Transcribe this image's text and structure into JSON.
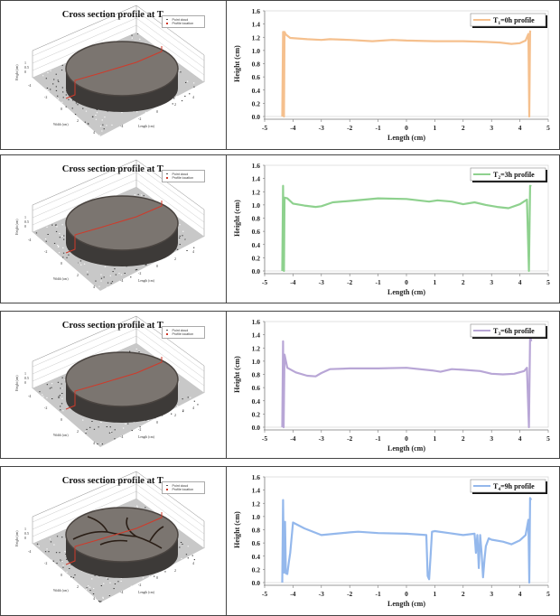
{
  "panels": [
    {
      "title_prefix": "Cross section profile at T",
      "title_sub": "1",
      "legend3d": [
        "Point cloud",
        "Profile location"
      ],
      "axis3d": {
        "height_label": "Height (cm)",
        "width_label": "Width (cm)",
        "length_label": "Length (cm)"
      },
      "profile_label_prefix": "T",
      "profile_label_sub": "1",
      "profile_label_suffix": "=0h profile",
      "color": "#F5C08E",
      "cracks": false
    },
    {
      "title_prefix": "Cross section profile at T",
      "title_sub": "2",
      "legend3d": [
        "Point cloud",
        "Profile location"
      ],
      "axis3d": {
        "height_label": "Height (cm)",
        "width_label": "Width (cm)",
        "length_label": "Length (cm)"
      },
      "profile_label_prefix": "T",
      "profile_label_sub": "2",
      "profile_label_suffix": "=3h profile",
      "color": "#8ED18E",
      "cracks": false
    },
    {
      "title_prefix": "Cross section profile at T",
      "title_sub": "3",
      "legend3d": [
        "Point cloud",
        "Profile location"
      ],
      "axis3d": {
        "height_label": "Height (cm)",
        "width_label": "Width (cm)",
        "length_label": "Length (cm)"
      },
      "profile_label_prefix": "T",
      "profile_label_sub": "3",
      "profile_label_suffix": "=6h profile",
      "color": "#B8A6D6",
      "cracks": false
    },
    {
      "title_prefix": "Cross section profile at T",
      "title_sub": "4",
      "legend3d": [
        "Point cloud",
        "Profile location"
      ],
      "axis3d": {
        "height_label": "Height (cm)",
        "width_label": "Width (cm)",
        "length_label": "Length (cm)"
      },
      "profile_label_prefix": "T",
      "profile_label_sub": "4",
      "profile_label_suffix": "=9h profile",
      "color": "#94B8EC",
      "cracks": true
    }
  ],
  "axes": {
    "xlabel": "Length (cm)",
    "ylabel": "Height (cm)",
    "xticks": [
      "-5",
      "-4",
      "-3",
      "-2",
      "-1",
      "0",
      "1",
      "2",
      "3",
      "4",
      "5"
    ],
    "yticks": [
      "0.0",
      "0.2",
      "0.4",
      "0.6",
      "0.8",
      "1.0",
      "1.2",
      "1.4",
      "1.6"
    ],
    "xlim": [
      -5,
      5
    ],
    "ylim": [
      0,
      1.6
    ]
  },
  "chart_data": [
    {
      "type": "line",
      "title": "T1=0h profile",
      "xlabel": "Length (cm)",
      "ylabel": "Height (cm)",
      "xlim": [
        -5,
        5
      ],
      "ylim": [
        0,
        1.6
      ],
      "legend_position": "upper right",
      "x": [
        -4.38,
        -4.35,
        -4.32,
        -4.3,
        -4.25,
        -4.1,
        -3.5,
        -3.0,
        -2.7,
        -2.0,
        -1.2,
        -0.5,
        0.0,
        1.0,
        2.0,
        2.8,
        3.3,
        3.7,
        4.0,
        4.2,
        4.3,
        4.33,
        4.36,
        4.38
      ],
      "y": [
        0.0,
        1.28,
        0.0,
        1.28,
        1.24,
        1.19,
        1.17,
        1.16,
        1.17,
        1.16,
        1.14,
        1.16,
        1.15,
        1.14,
        1.14,
        1.13,
        1.12,
        1.1,
        1.11,
        1.15,
        1.25,
        0.0,
        1.29,
        1.28
      ]
    },
    {
      "type": "line",
      "title": "T2=3h profile",
      "xlabel": "Length (cm)",
      "ylabel": "Height (cm)",
      "xlim": [
        -5,
        5
      ],
      "ylim": [
        0,
        1.6
      ],
      "legend_position": "upper right",
      "x": [
        -4.38,
        -4.35,
        -4.32,
        -4.3,
        -4.2,
        -4.0,
        -3.6,
        -3.2,
        -3.0,
        -2.6,
        -2.0,
        -1.0,
        0.0,
        0.8,
        1.1,
        1.6,
        2.0,
        2.4,
        2.8,
        3.2,
        3.6,
        4.0,
        4.25,
        4.32,
        4.36,
        4.4
      ],
      "y": [
        0.0,
        1.29,
        0.0,
        1.11,
        1.1,
        1.02,
        0.99,
        0.97,
        0.98,
        1.04,
        1.06,
        1.1,
        1.09,
        1.05,
        1.07,
        1.05,
        1.01,
        1.04,
        1.0,
        0.97,
        0.95,
        1.01,
        1.08,
        0.0,
        1.29,
        1.28
      ]
    },
    {
      "type": "line",
      "title": "T3=6h profile",
      "xlabel": "Length (cm)",
      "ylabel": "Height (cm)",
      "xlim": [
        -5,
        5
      ],
      "ylim": [
        0,
        1.6
      ],
      "legend_position": "upper right",
      "x": [
        -4.38,
        -4.35,
        -4.33,
        -4.3,
        -4.2,
        -3.9,
        -3.5,
        -3.2,
        -3.0,
        -2.7,
        -2.0,
        -1.0,
        0.0,
        0.9,
        1.2,
        1.6,
        2.0,
        2.6,
        3.0,
        3.4,
        3.8,
        4.15,
        4.25,
        4.32,
        4.36,
        4.4
      ],
      "y": [
        0.0,
        1.3,
        0.0,
        1.1,
        0.9,
        0.83,
        0.78,
        0.77,
        0.82,
        0.88,
        0.89,
        0.89,
        0.9,
        0.86,
        0.84,
        0.88,
        0.87,
        0.85,
        0.81,
        0.8,
        0.81,
        0.85,
        0.9,
        0.0,
        1.38,
        1.3
      ]
    },
    {
      "type": "line",
      "title": "T4=9h profile",
      "xlabel": "Length (cm)",
      "ylabel": "Height (cm)",
      "xlim": [
        -5,
        5
      ],
      "ylim": [
        0,
        1.6
      ],
      "legend_position": "upper right",
      "x": [
        -4.38,
        -4.35,
        -4.32,
        -4.28,
        -4.25,
        -4.2,
        -4.15,
        -4.1,
        -4.0,
        -3.6,
        -3.0,
        -2.0,
        -1.7,
        -1.0,
        0.0,
        0.7,
        0.75,
        0.8,
        0.85,
        0.9,
        1.0,
        1.5,
        2.0,
        2.4,
        2.45,
        2.5,
        2.55,
        2.6,
        2.65,
        2.7,
        2.75,
        2.8,
        2.9,
        3.0,
        3.4,
        3.7,
        4.0,
        4.2,
        4.3,
        4.33,
        4.36,
        4.4
      ],
      "y": [
        0.0,
        1.25,
        0.15,
        0.92,
        0.14,
        0.13,
        0.3,
        0.45,
        0.91,
        0.82,
        0.72,
        0.76,
        0.77,
        0.75,
        0.74,
        0.72,
        0.1,
        0.05,
        0.4,
        0.77,
        0.78,
        0.75,
        0.72,
        0.74,
        0.45,
        0.72,
        0.22,
        0.72,
        0.45,
        0.08,
        0.35,
        0.55,
        0.67,
        0.65,
        0.62,
        0.58,
        0.64,
        0.72,
        0.95,
        0.0,
        1.28,
        1.25
      ]
    }
  ]
}
